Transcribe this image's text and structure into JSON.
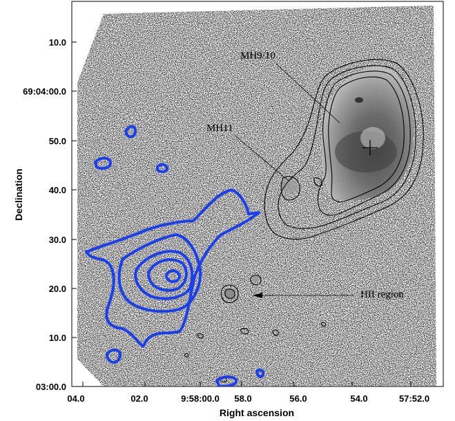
{
  "chart_data": {
    "type": "contour",
    "title": "",
    "xlabel": "Right ascension",
    "ylabel": "Declination",
    "x_ticks": [
      "04.0",
      "02.0",
      "9:58:00.0",
      "58.0",
      "56.0",
      "54.0",
      "57:52.0"
    ],
    "y_ticks": [
      "03:00.0",
      "10.0",
      "20.0",
      "30.0",
      "40.0",
      "50.0",
      "69:04:00.0",
      "10.0"
    ],
    "annotations": [
      {
        "label": "MH9/10"
      },
      {
        "label": "MH11"
      },
      {
        "label": "HII region"
      }
    ],
    "layers": [
      {
        "name": "grayscale image",
        "color": "#8a8a8a"
      },
      {
        "name": "black contours",
        "color": "#000000"
      },
      {
        "name": "blue contours",
        "color": "#1a3ff0"
      }
    ],
    "grid": false
  }
}
